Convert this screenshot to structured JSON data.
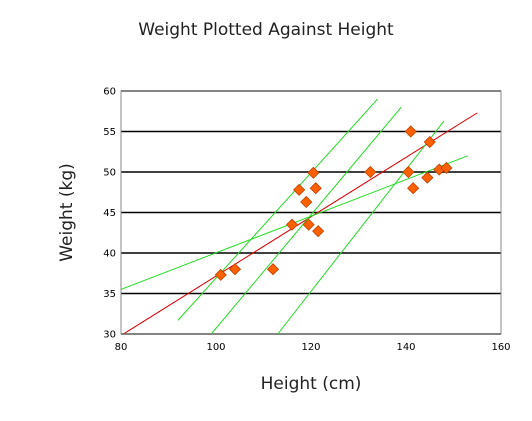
{
  "chart_data": {
    "type": "scatter",
    "title": "Weight Plotted Against Height",
    "xlabel": "Height (cm)",
    "ylabel": "Weight (kg)",
    "xlim": [
      80,
      160
    ],
    "ylim": [
      30,
      60
    ],
    "xticks": [
      "80",
      "100",
      "120",
      "140",
      "160"
    ],
    "yticks": [
      "30",
      "35",
      "40",
      "45",
      "50",
      "55",
      "60"
    ],
    "grid": "horizontal",
    "colors": {
      "points": "#ff6000",
      "point_edge": "#c04000",
      "regression": "#dd0000",
      "band": "#22dd22",
      "grid": "#000000"
    },
    "series": [
      {
        "values": [
          [
            101,
            37.3
          ],
          [
            104,
            38.0
          ],
          [
            112,
            38.0
          ],
          [
            116,
            43.5
          ],
          [
            117.5,
            47.8
          ],
          [
            119,
            46.3
          ],
          [
            119.5,
            43.5
          ],
          [
            120.5,
            49.9
          ],
          [
            121,
            48.0
          ],
          [
            121.5,
            42.7
          ],
          [
            132.5,
            50.0
          ],
          [
            140.5,
            50.0
          ],
          [
            141,
            55.0
          ],
          [
            141.5,
            48.0
          ],
          [
            144.5,
            49.3
          ],
          [
            145,
            53.7
          ],
          [
            147,
            50.3
          ],
          [
            148.5,
            50.5
          ]
        ]
      }
    ],
    "lines": [
      {
        "kind": "regression",
        "x1": 80.5,
        "y1": 30.0,
        "x2": 155,
        "y2": 57.3
      },
      {
        "kind": "band",
        "x1": 80,
        "y1": 35.5,
        "x2": 153,
        "y2": 52.0
      },
      {
        "kind": "band",
        "x1": 92,
        "y1": 31.7,
        "x2": 134,
        "y2": 59.0
      },
      {
        "kind": "band",
        "x1": 99,
        "y1": 30.0,
        "x2": 139,
        "y2": 58.0
      },
      {
        "kind": "band",
        "x1": 113,
        "y1": 30.0,
        "x2": 148,
        "y2": 56.3
      }
    ]
  }
}
